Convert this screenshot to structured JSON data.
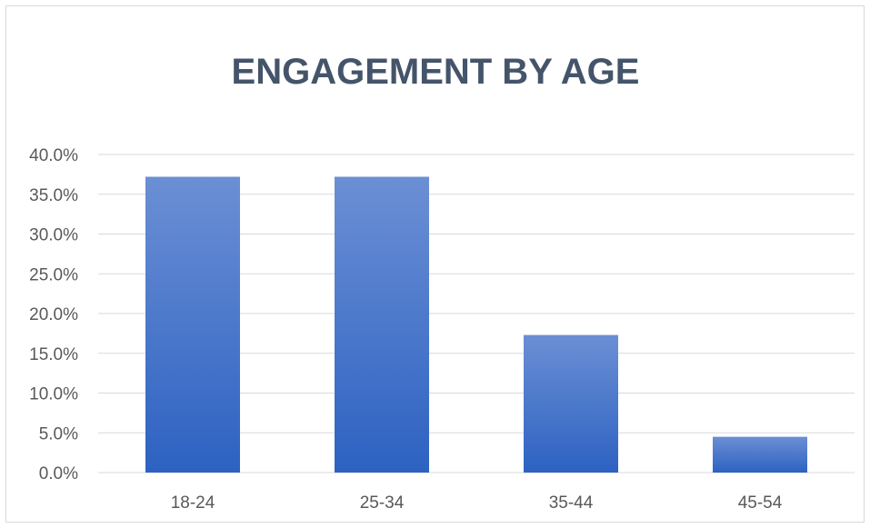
{
  "chart_data": {
    "type": "bar",
    "title": "ENGAGEMENT BY AGE",
    "xlabel": "",
    "ylabel": "",
    "categories": [
      "18-24",
      "25-34",
      "35-44",
      "45-54"
    ],
    "values": [
      37.2,
      37.2,
      17.3,
      4.5
    ],
    "ylim": [
      0,
      40
    ],
    "yticks": [
      "0.0%",
      "5.0%",
      "10.0%",
      "15.0%",
      "20.0%",
      "25.0%",
      "30.0%",
      "35.0%",
      "40.0%"
    ],
    "ytick_values": [
      0,
      5,
      10,
      15,
      20,
      25,
      30,
      35,
      40
    ],
    "grid": true,
    "legend": "none",
    "colors": {
      "bar_top": "#6b8fd4",
      "bar_bottom": "#2d62c2",
      "title": "#44546a",
      "tick": "#595959",
      "grid": "#d9d9d9"
    }
  }
}
